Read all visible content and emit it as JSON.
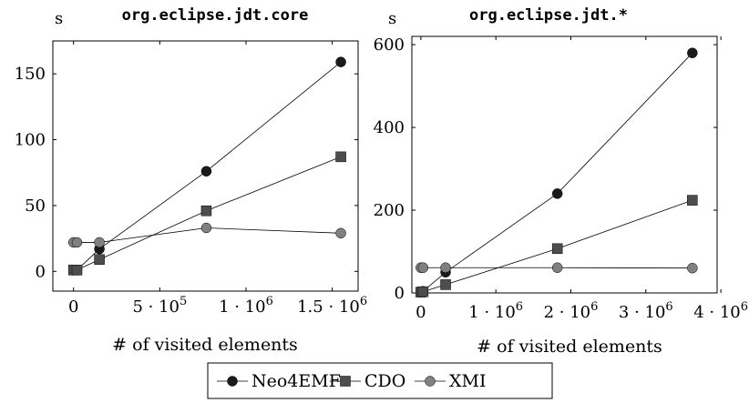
{
  "chart_data": [
    {
      "type": "line",
      "title": "org.eclipse.jdt.core",
      "ylabel": "s",
      "xlabel": "# of visited elements",
      "xlim": [
        -120000,
        1650000
      ],
      "ylim": [
        -15,
        175
      ],
      "xticks": [
        {
          "value": 0,
          "label": "0"
        },
        {
          "value": 500000,
          "label": "5 · 10",
          "exp": "5"
        },
        {
          "value": 1000000,
          "label": "1 · 10",
          "exp": "6"
        },
        {
          "value": 1500000,
          "label": "1.5 · 10",
          "exp": "6"
        }
      ],
      "yticks": [
        {
          "value": 0,
          "label": "0"
        },
        {
          "value": 50,
          "label": "50"
        },
        {
          "value": 100,
          "label": "100"
        },
        {
          "value": 150,
          "label": "150"
        }
      ],
      "series": [
        {
          "name": "Neo4EMF",
          "marker": "circle",
          "color": "#1a1a1a",
          "x": [
            0,
            20000,
            150000,
            770000,
            1550000
          ],
          "y": [
            1,
            1,
            17,
            76,
            159
          ]
        },
        {
          "name": "CDO",
          "marker": "square",
          "color": "#4d4d4d",
          "x": [
            0,
            20000,
            150000,
            770000,
            1550000
          ],
          "y": [
            1,
            1,
            9,
            46,
            87
          ]
        },
        {
          "name": "XMI",
          "marker": "circle",
          "color": "#808080",
          "x": [
            0,
            20000,
            150000,
            770000,
            1550000
          ],
          "y": [
            22,
            22,
            22,
            33,
            29
          ]
        }
      ]
    },
    {
      "type": "line",
      "title": "org.eclipse.jdt.*",
      "ylabel": "s",
      "xlabel": "# of visited elements",
      "xlim": [
        -120000,
        3950000
      ],
      "ylim": [
        0,
        620
      ],
      "xticks": [
        {
          "value": 0,
          "label": "0"
        },
        {
          "value": 1000000,
          "label": "1 · 10",
          "exp": "6"
        },
        {
          "value": 2000000,
          "label": "2 · 10",
          "exp": "6"
        },
        {
          "value": 3000000,
          "label": "3 · 10",
          "exp": "6"
        },
        {
          "value": 4000000,
          "label": "4 · 10",
          "exp": "6"
        }
      ],
      "yticks": [
        {
          "value": 0,
          "label": "0"
        },
        {
          "value": 200,
          "label": "200"
        },
        {
          "value": 400,
          "label": "400"
        },
        {
          "value": 600,
          "label": "600"
        }
      ],
      "series": [
        {
          "name": "Neo4EMF",
          "marker": "circle",
          "color": "#1a1a1a",
          "x": [
            0,
            30000,
            330000,
            1820000,
            3620000
          ],
          "y": [
            2,
            4,
            50,
            240,
            580
          ]
        },
        {
          "name": "CDO",
          "marker": "square",
          "color": "#4d4d4d",
          "x": [
            0,
            30000,
            330000,
            1820000,
            3620000
          ],
          "y": [
            2,
            3,
            20,
            107,
            224
          ]
        },
        {
          "name": "XMI",
          "marker": "circle",
          "color": "#808080",
          "x": [
            0,
            30000,
            330000,
            1820000,
            3620000
          ],
          "y": [
            61,
            61,
            61,
            61,
            60
          ]
        }
      ]
    }
  ],
  "legend": {
    "position": "bottom-center",
    "items": [
      {
        "label": "Neo4EMF",
        "marker": "circle",
        "color": "#1a1a1a"
      },
      {
        "label": "CDO",
        "marker": "square",
        "color": "#4d4d4d"
      },
      {
        "label": "XMI",
        "marker": "circle",
        "color": "#808080"
      }
    ]
  }
}
